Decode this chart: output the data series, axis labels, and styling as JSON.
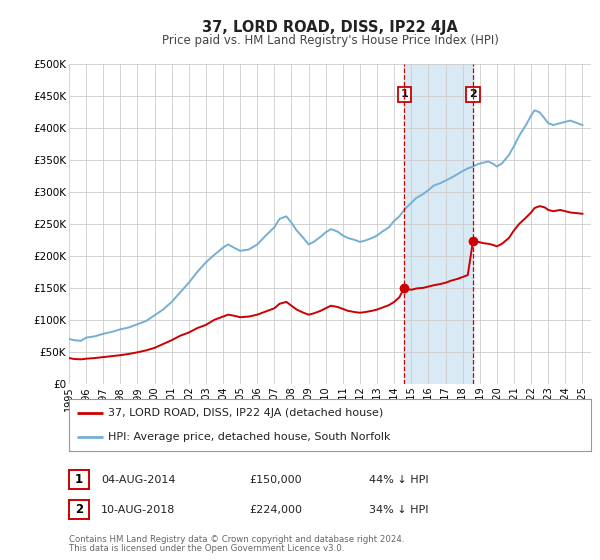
{
  "title": "37, LORD ROAD, DISS, IP22 4JA",
  "subtitle": "Price paid vs. HM Land Registry's House Price Index (HPI)",
  "xlabel": "",
  "ylabel": "",
  "ylim": [
    0,
    500000
  ],
  "yticks": [
    0,
    50000,
    100000,
    150000,
    200000,
    250000,
    300000,
    350000,
    400000,
    450000,
    500000
  ],
  "ytick_labels": [
    "£0",
    "£50K",
    "£100K",
    "£150K",
    "£200K",
    "£250K",
    "£300K",
    "£350K",
    "£400K",
    "£450K",
    "£500K"
  ],
  "xlim_start": 1995.0,
  "xlim_end": 2025.5,
  "xticks": [
    1995,
    1996,
    1997,
    1998,
    1999,
    2000,
    2001,
    2002,
    2003,
    2004,
    2005,
    2006,
    2007,
    2008,
    2009,
    2010,
    2011,
    2012,
    2013,
    2014,
    2015,
    2016,
    2017,
    2018,
    2019,
    2020,
    2021,
    2022,
    2023,
    2024,
    2025
  ],
  "hpi_color": "#74afd4",
  "price_color": "#cc0000",
  "marker_color": "#cc0000",
  "vline_color": "#cc0000",
  "highlight_color": "#daeaf5",
  "grid_color": "#cccccc",
  "background_color": "#ffffff",
  "sale1_date": 2014.585,
  "sale1_price": 150000,
  "sale2_date": 2018.608,
  "sale2_price": 224000,
  "legend_label_price": "37, LORD ROAD, DISS, IP22 4JA (detached house)",
  "legend_label_hpi": "HPI: Average price, detached house, South Norfolk",
  "annotation1_label": "1",
  "annotation2_label": "2",
  "footer1": "Contains HM Land Registry data © Crown copyright and database right 2024.",
  "footer2": "This data is licensed under the Open Government Licence v3.0.",
  "table_row1": [
    "1",
    "04-AUG-2014",
    "£150,000",
    "44% ↓ HPI"
  ],
  "table_row2": [
    "2",
    "10-AUG-2018",
    "£224,000",
    "34% ↓ HPI"
  ]
}
